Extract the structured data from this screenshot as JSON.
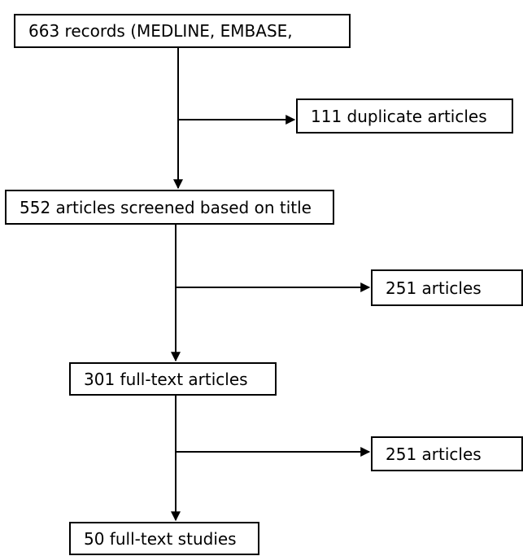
{
  "flowchart": {
    "records": {
      "label": "663 records (MEDLINE, EMBASE,"
    },
    "duplicates": {
      "label": "111 duplicate articles"
    },
    "screened": {
      "label": "552 articles screened based on title"
    },
    "excluded_title": {
      "label": "251 articles"
    },
    "fulltext": {
      "label": "301 full-text articles"
    },
    "excluded_fulltext": {
      "label": "251 articles"
    },
    "included": {
      "label": "50 full-text studies"
    }
  },
  "colors": {
    "line": "#000000",
    "box_border": "#000000",
    "background": "#ffffff"
  }
}
